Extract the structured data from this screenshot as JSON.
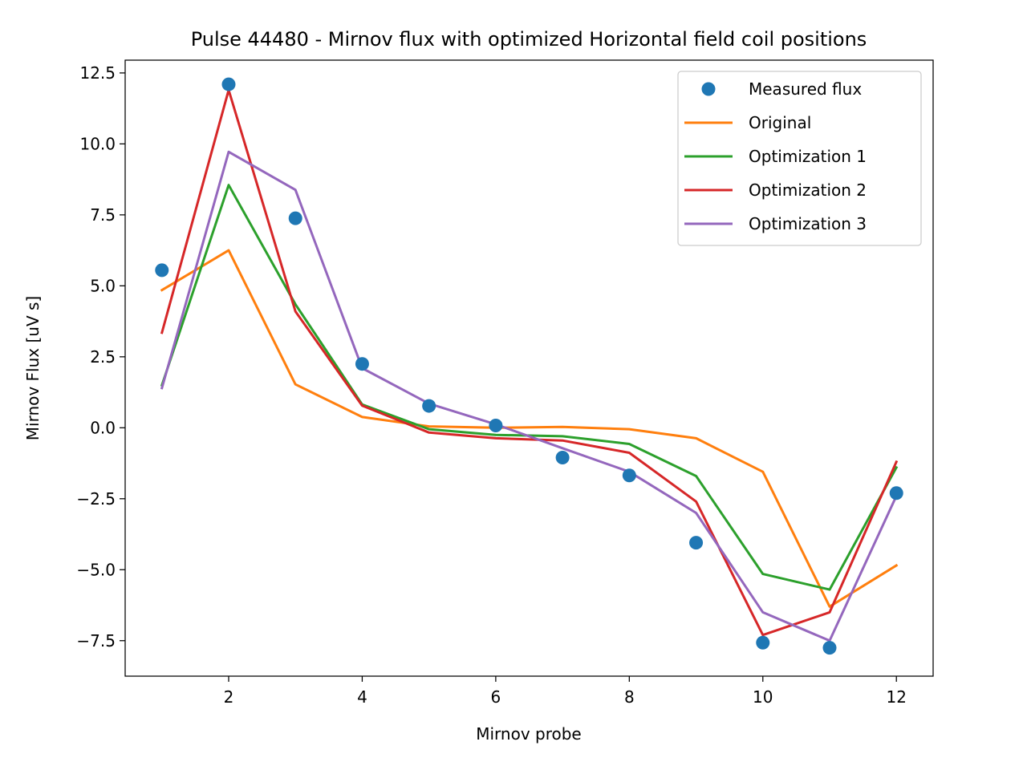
{
  "chart_data": {
    "type": "line",
    "title": "Pulse 44480 - Mirnov flux with optimized Horizontal field coil positions",
    "xlabel": "Mirnov probe",
    "ylabel": "Mirnov Flux [uV s]",
    "xlim": [
      0.45,
      12.55
    ],
    "ylim": [
      -8.75,
      12.95
    ],
    "xticks": [
      2,
      4,
      6,
      8,
      10,
      12
    ],
    "xtick_labels": [
      "2",
      "4",
      "6",
      "8",
      "10",
      "12"
    ],
    "yticks": [
      12.5,
      10.0,
      7.5,
      5.0,
      2.5,
      0.0,
      -2.5,
      -5.0,
      -7.5
    ],
    "ytick_labels": [
      "12.5",
      "10.0",
      "7.5",
      "5.0",
      "2.5",
      "0.0",
      "−2.5",
      "−5.0",
      "−7.5"
    ],
    "grid": false,
    "legend_position": "top-right",
    "x": [
      1,
      2,
      3,
      4,
      5,
      6,
      7,
      8,
      9,
      10,
      11,
      12
    ],
    "series": [
      {
        "name": "Measured flux",
        "kind": "scatter",
        "color": "#1f77b4",
        "values": [
          5.55,
          12.1,
          7.38,
          2.25,
          0.77,
          0.08,
          -1.05,
          -1.68,
          -4.05,
          -7.57,
          -7.75,
          -2.3
        ]
      },
      {
        "name": "Original",
        "kind": "line",
        "color": "#ff7f0e",
        "values": [
          4.85,
          6.25,
          1.53,
          0.38,
          0.05,
          0.0,
          0.03,
          -0.05,
          -0.37,
          -1.55,
          -6.3,
          -4.85
        ]
      },
      {
        "name": "Optimization 1",
        "kind": "line",
        "color": "#2ca02c",
        "values": [
          1.5,
          8.55,
          4.35,
          0.82,
          -0.05,
          -0.25,
          -0.3,
          -0.57,
          -1.7,
          -5.15,
          -5.7,
          -1.4
        ]
      },
      {
        "name": "Optimization 2",
        "kind": "line",
        "color": "#d62728",
        "values": [
          3.35,
          11.9,
          4.1,
          0.78,
          -0.17,
          -0.37,
          -0.45,
          -0.88,
          -2.6,
          -7.3,
          -6.5,
          -1.2
        ]
      },
      {
        "name": "Optimization 3",
        "kind": "line",
        "color": "#9467bd",
        "values": [
          1.4,
          9.72,
          8.38,
          2.1,
          0.85,
          0.12,
          -0.72,
          -1.55,
          -3.0,
          -6.5,
          -7.5,
          -2.4
        ]
      }
    ]
  }
}
